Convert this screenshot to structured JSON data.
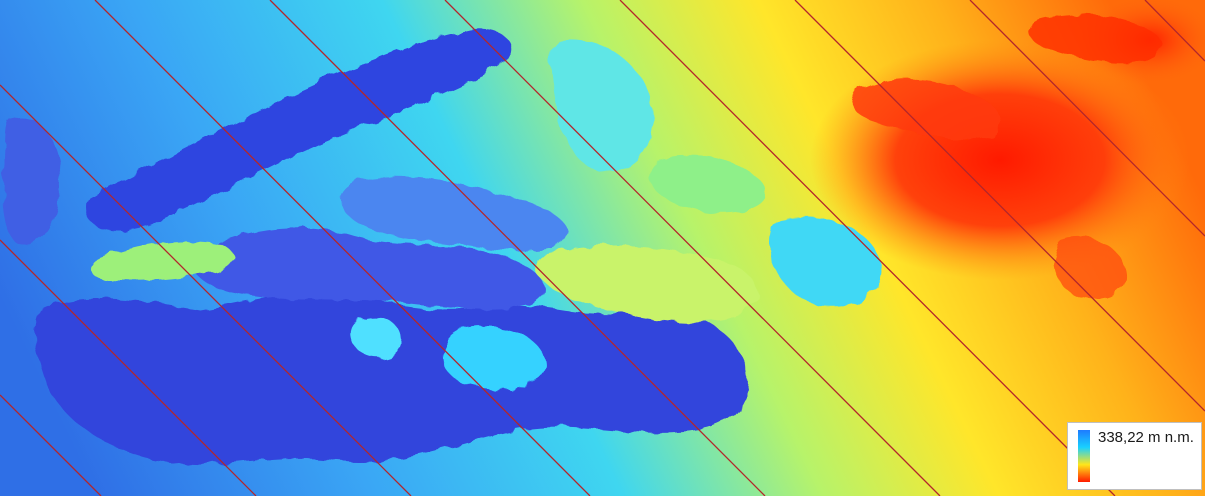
{
  "legend": {
    "label": "338,22 m n.m.",
    "gradient_colors": [
      "#1e7bff",
      "#19d0ff",
      "#ffe61a",
      "#ff1a00"
    ]
  },
  "map": {
    "colors": {
      "low": "#2a3bd6",
      "mid_low": "#35b8ff",
      "mid": "#bfff6a",
      "mid_high": "#ffd81a",
      "high": "#ff2a00",
      "track_line": "#b3262b"
    }
  }
}
